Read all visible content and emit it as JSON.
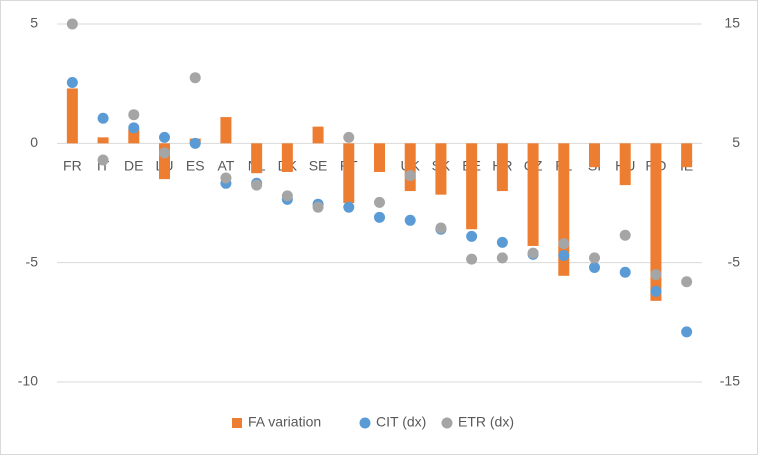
{
  "chart_data": {
    "type": "bar-scatter",
    "categories": [
      "FR",
      "IT",
      "DE",
      "LU",
      "ES",
      "AT",
      "NL",
      "DK",
      "SE",
      "PT",
      "FI",
      "UK",
      "SK",
      "EE",
      "HR",
      "CZ",
      "PL",
      "SI",
      "HU",
      "RO",
      "IE"
    ],
    "series": [
      {
        "name": "FA variation",
        "type": "bar",
        "color": "#ed7d31",
        "axis": "y",
        "values": [
          2.3,
          0.25,
          0.6,
          -1.5,
          0.2,
          1.1,
          -1.25,
          -1.2,
          0.7,
          -2.5,
          -1.2,
          -2.0,
          -2.15,
          -3.6,
          -2.0,
          -4.3,
          -5.55,
          -1.0,
          -1.75,
          -6.6,
          -1.0
        ]
      },
      {
        "name": "CIT (dx)",
        "type": "scatter",
        "color": "#5b9bd5",
        "axis": "y2",
        "values": [
          10.1,
          7.1,
          6.3,
          5.5,
          5.0,
          1.65,
          1.65,
          0.3,
          -0.1,
          -0.35,
          -1.2,
          -1.45,
          -2.2,
          -2.8,
          -3.3,
          -4.3,
          -4.4,
          -5.4,
          -5.8,
          -7.4,
          -10.8
        ]
      },
      {
        "name": "ETR (dx)",
        "type": "scatter",
        "color": "#a5a5a5",
        "axis": "y2",
        "values": [
          15.0,
          3.6,
          7.4,
          4.2,
          10.5,
          2.1,
          1.5,
          0.6,
          -0.35,
          5.5,
          0.05,
          2.3,
          -2.1,
          -4.7,
          -4.6,
          -4.2,
          -3.4,
          -4.6,
          -2.7,
          -6.0,
          -6.6
        ]
      }
    ],
    "ylim": [
      -10,
      5
    ],
    "yticks": [
      -10,
      -5,
      0,
      5
    ],
    "y2lim": [
      -15,
      15
    ],
    "y2ticks": [
      -15,
      -5,
      5,
      15
    ],
    "grid": true,
    "legend": "bottom"
  }
}
